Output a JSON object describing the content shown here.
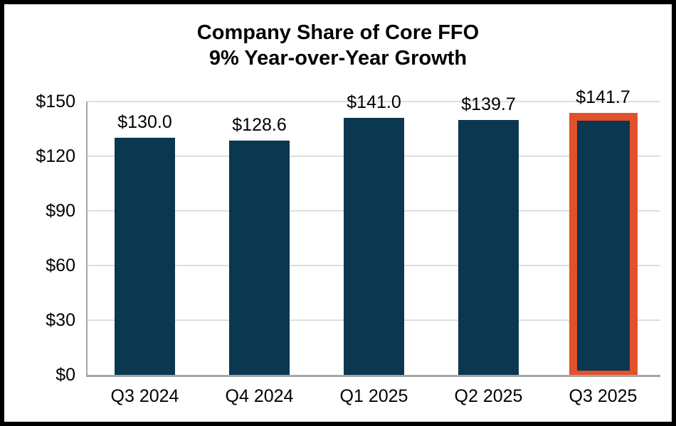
{
  "chart_data": {
    "type": "bar",
    "title": "Company Share of Core FFO",
    "subtitle": "9% Year-over-Year Growth",
    "categories": [
      "Q3 2024",
      "Q4 2024",
      "Q1 2025",
      "Q2 2025",
      "Q3 2025"
    ],
    "values": [
      130.0,
      128.6,
      141.0,
      139.7,
      141.7
    ],
    "data_labels": [
      "$130.0",
      "$128.6",
      "$141.0",
      "$139.7",
      "$141.7"
    ],
    "y_ticks": [
      "$150",
      "$120",
      "$90",
      "$60",
      "$30",
      "$0"
    ],
    "y_tick_values": [
      150,
      120,
      90,
      60,
      30,
      0
    ],
    "ylim": [
      0,
      150
    ],
    "grid": true,
    "legend": "none",
    "highlighted_category": "Q3 2025",
    "highlight_index": 4,
    "colors": {
      "bar": "#0b3750",
      "highlight_outline": "#e2512b",
      "gridline": "#dedede",
      "axis_line": "#a6a6a6",
      "text": "#000000",
      "frame_border": "#000000",
      "background": "#ffffff"
    }
  }
}
